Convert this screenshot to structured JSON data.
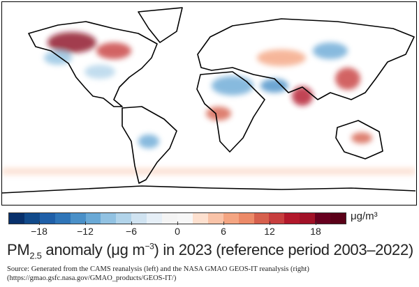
{
  "map": {
    "description_colors": {
      "positive": "#b2182b",
      "negative": "#2166ac"
    }
  },
  "colorbar": {
    "unit": "μg/m³",
    "range": [
      -22,
      22
    ],
    "ticks": [
      "−18",
      "−12",
      "−6",
      "0",
      "6",
      "12",
      "18"
    ],
    "tick_values": [
      -18,
      -12,
      -6,
      0,
      6,
      12,
      18
    ],
    "colors": [
      "#08306b",
      "#114a8a",
      "#1f5fa8",
      "#2f75b8",
      "#4a90c8",
      "#6aa9d6",
      "#92c2e2",
      "#b2d4ea",
      "#d0e3f1",
      "#e6eff7",
      "#f4f4f4",
      "#f7f7f7",
      "#fde0cf",
      "#f9c3a8",
      "#f4a582",
      "#ec8a68",
      "#d6604d",
      "#c73e3e",
      "#b2182b",
      "#a11127",
      "#67001f",
      "#5a0018"
    ]
  },
  "title": {
    "prefix": "PM",
    "subscript": "2.5",
    "middle": " anomaly (μg m",
    "superscript": "−3",
    "suffix": ") in 2023 (reference period 2003–2022)"
  },
  "source": "Source: Generated from the CAMS reanalysis (left) and the NASA GMAO GEOS-IT reanalysis (right) (https://gmao.gsfc.nasa.gov/GMAO_products/GEOS-IT/)"
}
